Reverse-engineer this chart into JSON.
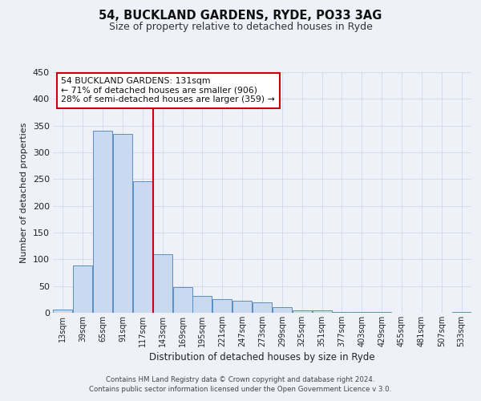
{
  "title": "54, BUCKLAND GARDENS, RYDE, PO33 3AG",
  "subtitle": "Size of property relative to detached houses in Ryde",
  "xlabel": "Distribution of detached houses by size in Ryde",
  "ylabel": "Number of detached properties",
  "bar_labels": [
    "13sqm",
    "39sqm",
    "65sqm",
    "91sqm",
    "117sqm",
    "143sqm",
    "169sqm",
    "195sqm",
    "221sqm",
    "247sqm",
    "273sqm",
    "299sqm",
    "325sqm",
    "351sqm",
    "377sqm",
    "403sqm",
    "429sqm",
    "455sqm",
    "481sqm",
    "507sqm",
    "533sqm"
  ],
  "bar_values": [
    6,
    88,
    341,
    335,
    246,
    110,
    48,
    32,
    25,
    22,
    20,
    10,
    5,
    5,
    2,
    2,
    2,
    0,
    0,
    0,
    2
  ],
  "bar_color": "#c9daf0",
  "bar_edge_color": "#5b8ec4",
  "annotation_title": "54 BUCKLAND GARDENS: 131sqm",
  "annotation_line1": "← 71% of detached houses are smaller (906)",
  "annotation_line2": "28% of semi-detached houses are larger (359) →",
  "annotation_box_facecolor": "#ffffff",
  "annotation_box_edgecolor": "#cc0000",
  "vline_color": "#cc0000",
  "vline_pos": 4.54,
  "ylim": [
    0,
    450
  ],
  "yticks": [
    0,
    50,
    100,
    150,
    200,
    250,
    300,
    350,
    400,
    450
  ],
  "bg_color": "#eef2f8",
  "grid_color": "#c8d4e8",
  "footnote1": "Contains HM Land Registry data © Crown copyright and database right 2024.",
  "footnote2": "Contains public sector information licensed under the Open Government Licence v 3.0."
}
